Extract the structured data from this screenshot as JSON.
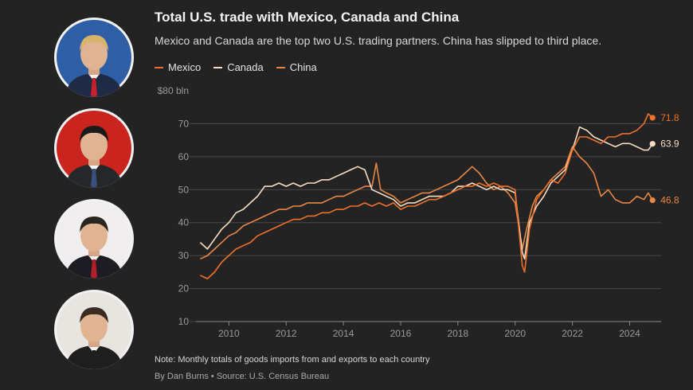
{
  "header": {
    "title": "Total U.S. trade with Mexico, Canada and China",
    "subtitle": "Mexico and Canada are the top two U.S. trading partners. China has slipped to third place."
  },
  "portraits": [
    {
      "name": "portrait-1",
      "background": "#2e5fa6",
      "suit": "#1f2b45",
      "tie": "#c8202a",
      "hair": "#d8b36a"
    },
    {
      "name": "portrait-2",
      "background": "#c9241e",
      "suit": "#26272b",
      "tie": "#3a4f7a",
      "hair": "#1a1a1a"
    },
    {
      "name": "portrait-3",
      "background": "#f0eeee",
      "suit": "#1c1c22",
      "tie": "#b21e2a",
      "hair": "#2b2520"
    },
    {
      "name": "portrait-4",
      "background": "#e8e4e0",
      "suit": "#1e1e1e",
      "tie": "#1e1e1e",
      "hair": "#3a2a20"
    }
  ],
  "footer": {
    "note": "Note: Monthly totals of goods imports from and exports to each country",
    "source": "By Dan Burns • Source: U.S. Census Bureau"
  },
  "chart_data": {
    "type": "line",
    "ylabel": "$80 bln",
    "ylim": [
      10,
      80
    ],
    "xlim": [
      2008.85,
      2025.1
    ],
    "yticks": [
      10,
      20,
      30,
      40,
      50,
      60,
      70
    ],
    "xticks": [
      2010,
      2012,
      2014,
      2016,
      2018,
      2020,
      2022,
      2024
    ],
    "grid": true,
    "legend_position": "top-left",
    "series": [
      {
        "name": "Mexico",
        "color": "#f0702a",
        "end_label": "71.8",
        "points": [
          [
            2009.0,
            24
          ],
          [
            2009.25,
            23
          ],
          [
            2009.5,
            25
          ],
          [
            2009.75,
            28
          ],
          [
            2010.0,
            30
          ],
          [
            2010.25,
            32
          ],
          [
            2010.5,
            33
          ],
          [
            2010.75,
            34
          ],
          [
            2011.0,
            36
          ],
          [
            2011.25,
            37
          ],
          [
            2011.5,
            38
          ],
          [
            2011.75,
            39
          ],
          [
            2012.0,
            40
          ],
          [
            2012.25,
            41
          ],
          [
            2012.5,
            41
          ],
          [
            2012.75,
            42
          ],
          [
            2013.0,
            42
          ],
          [
            2013.25,
            43
          ],
          [
            2013.5,
            43
          ],
          [
            2013.75,
            44
          ],
          [
            2014.0,
            44
          ],
          [
            2014.25,
            45
          ],
          [
            2014.5,
            45
          ],
          [
            2014.75,
            46
          ],
          [
            2015.0,
            45
          ],
          [
            2015.25,
            46
          ],
          [
            2015.5,
            45
          ],
          [
            2015.75,
            46
          ],
          [
            2016.0,
            44
          ],
          [
            2016.25,
            45
          ],
          [
            2016.5,
            45
          ],
          [
            2016.75,
            46
          ],
          [
            2017.0,
            47
          ],
          [
            2017.25,
            47
          ],
          [
            2017.5,
            48
          ],
          [
            2017.75,
            49
          ],
          [
            2018.0,
            50
          ],
          [
            2018.25,
            51
          ],
          [
            2018.5,
            51
          ],
          [
            2018.75,
            52
          ],
          [
            2019.0,
            51
          ],
          [
            2019.25,
            52
          ],
          [
            2019.5,
            51
          ],
          [
            2019.75,
            51
          ],
          [
            2020.0,
            50
          ],
          [
            2020.25,
            27
          ],
          [
            2020.33,
            25
          ],
          [
            2020.5,
            38
          ],
          [
            2020.75,
            47
          ],
          [
            2021.0,
            50
          ],
          [
            2021.25,
            53
          ],
          [
            2021.5,
            52
          ],
          [
            2021.75,
            55
          ],
          [
            2022.0,
            62
          ],
          [
            2022.25,
            66
          ],
          [
            2022.5,
            66
          ],
          [
            2022.75,
            65
          ],
          [
            2023.0,
            64
          ],
          [
            2023.25,
            66
          ],
          [
            2023.5,
            66
          ],
          [
            2023.75,
            67
          ],
          [
            2024.0,
            67
          ],
          [
            2024.25,
            68
          ],
          [
            2024.5,
            70
          ],
          [
            2024.65,
            73
          ],
          [
            2024.8,
            71.8
          ]
        ]
      },
      {
        "name": "Canada",
        "color": "#f6ddc2",
        "end_label": "63.9",
        "points": [
          [
            2009.0,
            34
          ],
          [
            2009.25,
            32
          ],
          [
            2009.5,
            35
          ],
          [
            2009.75,
            38
          ],
          [
            2010.0,
            40
          ],
          [
            2010.25,
            43
          ],
          [
            2010.5,
            44
          ],
          [
            2010.75,
            46
          ],
          [
            2011.0,
            48
          ],
          [
            2011.25,
            51
          ],
          [
            2011.5,
            51
          ],
          [
            2011.75,
            52
          ],
          [
            2012.0,
            51
          ],
          [
            2012.25,
            52
          ],
          [
            2012.5,
            51
          ],
          [
            2012.75,
            52
          ],
          [
            2013.0,
            52
          ],
          [
            2013.25,
            53
          ],
          [
            2013.5,
            53
          ],
          [
            2013.75,
            54
          ],
          [
            2014.0,
            55
          ],
          [
            2014.25,
            56
          ],
          [
            2014.5,
            57
          ],
          [
            2014.75,
            56
          ],
          [
            2015.0,
            50
          ],
          [
            2015.25,
            49
          ],
          [
            2015.5,
            48
          ],
          [
            2015.75,
            47
          ],
          [
            2016.0,
            45
          ],
          [
            2016.25,
            46
          ],
          [
            2016.5,
            46
          ],
          [
            2016.75,
            47
          ],
          [
            2017.0,
            48
          ],
          [
            2017.25,
            48
          ],
          [
            2017.5,
            48
          ],
          [
            2017.75,
            49
          ],
          [
            2018.0,
            51
          ],
          [
            2018.25,
            51
          ],
          [
            2018.5,
            52
          ],
          [
            2018.75,
            51
          ],
          [
            2019.0,
            50
          ],
          [
            2019.25,
            51
          ],
          [
            2019.5,
            50
          ],
          [
            2019.75,
            50
          ],
          [
            2020.0,
            49
          ],
          [
            2020.25,
            31
          ],
          [
            2020.33,
            29
          ],
          [
            2020.5,
            40
          ],
          [
            2020.75,
            45
          ],
          [
            2021.0,
            48
          ],
          [
            2021.25,
            52
          ],
          [
            2021.5,
            54
          ],
          [
            2021.75,
            56
          ],
          [
            2022.0,
            62
          ],
          [
            2022.25,
            69
          ],
          [
            2022.5,
            68
          ],
          [
            2022.75,
            66
          ],
          [
            2023.0,
            65
          ],
          [
            2023.25,
            64
          ],
          [
            2023.5,
            63
          ],
          [
            2023.75,
            64
          ],
          [
            2024.0,
            64
          ],
          [
            2024.25,
            63
          ],
          [
            2024.5,
            62
          ],
          [
            2024.65,
            62
          ],
          [
            2024.8,
            63.9
          ]
        ]
      },
      {
        "name": "China",
        "color": "#e88745",
        "end_label": "46.8",
        "points": [
          [
            2009.0,
            29
          ],
          [
            2009.25,
            30
          ],
          [
            2009.5,
            32
          ],
          [
            2009.75,
            34
          ],
          [
            2010.0,
            36
          ],
          [
            2010.25,
            37
          ],
          [
            2010.5,
            39
          ],
          [
            2010.75,
            40
          ],
          [
            2011.0,
            41
          ],
          [
            2011.25,
            42
          ],
          [
            2011.5,
            43
          ],
          [
            2011.75,
            44
          ],
          [
            2012.0,
            44
          ],
          [
            2012.25,
            45
          ],
          [
            2012.5,
            45
          ],
          [
            2012.75,
            46
          ],
          [
            2013.0,
            46
          ],
          [
            2013.25,
            46
          ],
          [
            2013.5,
            47
          ],
          [
            2013.75,
            48
          ],
          [
            2014.0,
            48
          ],
          [
            2014.25,
            49
          ],
          [
            2014.5,
            50
          ],
          [
            2014.75,
            51
          ],
          [
            2015.0,
            51
          ],
          [
            2015.15,
            58
          ],
          [
            2015.3,
            50
          ],
          [
            2015.5,
            49
          ],
          [
            2015.75,
            48
          ],
          [
            2016.0,
            46
          ],
          [
            2016.25,
            47
          ],
          [
            2016.5,
            48
          ],
          [
            2016.75,
            49
          ],
          [
            2017.0,
            49
          ],
          [
            2017.25,
            50
          ],
          [
            2017.5,
            51
          ],
          [
            2017.75,
            52
          ],
          [
            2018.0,
            53
          ],
          [
            2018.25,
            55
          ],
          [
            2018.5,
            57
          ],
          [
            2018.75,
            55
          ],
          [
            2019.0,
            52
          ],
          [
            2019.25,
            50
          ],
          [
            2019.5,
            51
          ],
          [
            2019.75,
            49
          ],
          [
            2020.0,
            46
          ],
          [
            2020.25,
            32
          ],
          [
            2020.4,
            38
          ],
          [
            2020.6,
            45
          ],
          [
            2020.75,
            48
          ],
          [
            2021.0,
            50
          ],
          [
            2021.25,
            53
          ],
          [
            2021.5,
            55
          ],
          [
            2021.75,
            57
          ],
          [
            2022.0,
            63
          ],
          [
            2022.25,
            60
          ],
          [
            2022.5,
            58
          ],
          [
            2022.75,
            55
          ],
          [
            2023.0,
            48
          ],
          [
            2023.25,
            50
          ],
          [
            2023.5,
            47
          ],
          [
            2023.75,
            46
          ],
          [
            2024.0,
            46
          ],
          [
            2024.25,
            48
          ],
          [
            2024.5,
            47
          ],
          [
            2024.65,
            49
          ],
          [
            2024.8,
            46.8
          ]
        ]
      }
    ]
  }
}
